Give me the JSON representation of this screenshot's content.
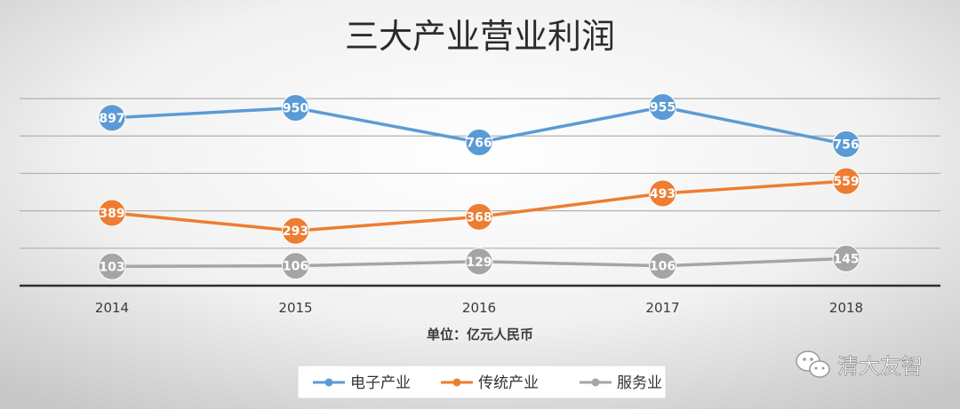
{
  "chart_data": {
    "type": "line",
    "title": "三大产业营业利润",
    "xlabel": "单位：亿元人民币",
    "ylabel": "",
    "categories": [
      "2014",
      "2015",
      "2016",
      "2017",
      "2018"
    ],
    "ylim": [
      0,
      1100
    ],
    "grid": true,
    "legend_position": "bottom",
    "series": [
      {
        "name": "电子产业",
        "values": [
          897,
          950,
          766,
          955,
          756
        ],
        "color": "#5b9bd5"
      },
      {
        "name": "传统产业",
        "values": [
          389,
          293,
          368,
          493,
          559
        ],
        "color": "#ed7d31"
      },
      {
        "name": "服务业",
        "values": [
          103,
          106,
          129,
          106,
          145
        ],
        "color": "#a5a5a5"
      }
    ]
  },
  "watermark": {
    "text": "清大友智",
    "icon": "wechat-icon"
  },
  "colors": {
    "background_center": "#ffffff",
    "background_edge": "#cfcfcf",
    "axis": "#2e2e2e",
    "grid": "#b0b0b0"
  }
}
